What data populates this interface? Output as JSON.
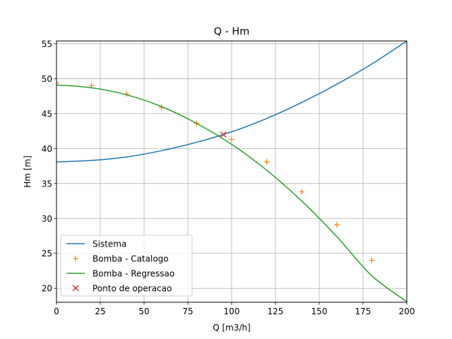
{
  "chart_data": {
    "type": "line",
    "title": "Q - Hm",
    "xlabel": "Q [m3/h]",
    "ylabel": "Hm [m]",
    "xlim": [
      0,
      200
    ],
    "ylim": [
      18,
      55.4
    ],
    "xticks": [
      0,
      25,
      50,
      75,
      100,
      125,
      150,
      175,
      200
    ],
    "yticks": [
      20,
      25,
      30,
      35,
      40,
      45,
      50,
      55
    ],
    "grid": true,
    "legend_position": "lower-left",
    "series": [
      {
        "name": "Sistema",
        "kind": "line",
        "color": "#1f77b4",
        "x": [
          0,
          20,
          40,
          60,
          80,
          100,
          120,
          140,
          160,
          180,
          200
        ],
        "y": [
          38.1,
          38.3,
          38.8,
          39.7,
          40.9,
          42.4,
          44.3,
          46.6,
          49.2,
          52.1,
          55.4
        ]
      },
      {
        "name": "Bomba - Catalogo",
        "kind": "marker",
        "marker": "plus",
        "color": "#ff7f0e",
        "x": [
          0,
          20,
          40,
          60,
          80,
          100,
          120,
          140,
          160,
          180
        ],
        "y": [
          49.4,
          49.0,
          47.8,
          45.9,
          43.6,
          41.3,
          38.1,
          33.8,
          29.1,
          24.0
        ]
      },
      {
        "name": "Bomba - Regressao",
        "kind": "line",
        "color": "#2ca02c",
        "x": [
          0,
          20,
          40,
          60,
          80,
          100,
          120,
          140,
          160,
          180,
          200
        ],
        "y": [
          49.1,
          48.7,
          47.7,
          46.0,
          43.6,
          40.6,
          36.9,
          32.5,
          27.4,
          21.8,
          18.1
        ]
      },
      {
        "name": "Ponto de operacao",
        "kind": "marker",
        "marker": "x",
        "color": "#d62728",
        "x": [
          95.3
        ],
        "y": [
          42.0
        ]
      }
    ]
  }
}
